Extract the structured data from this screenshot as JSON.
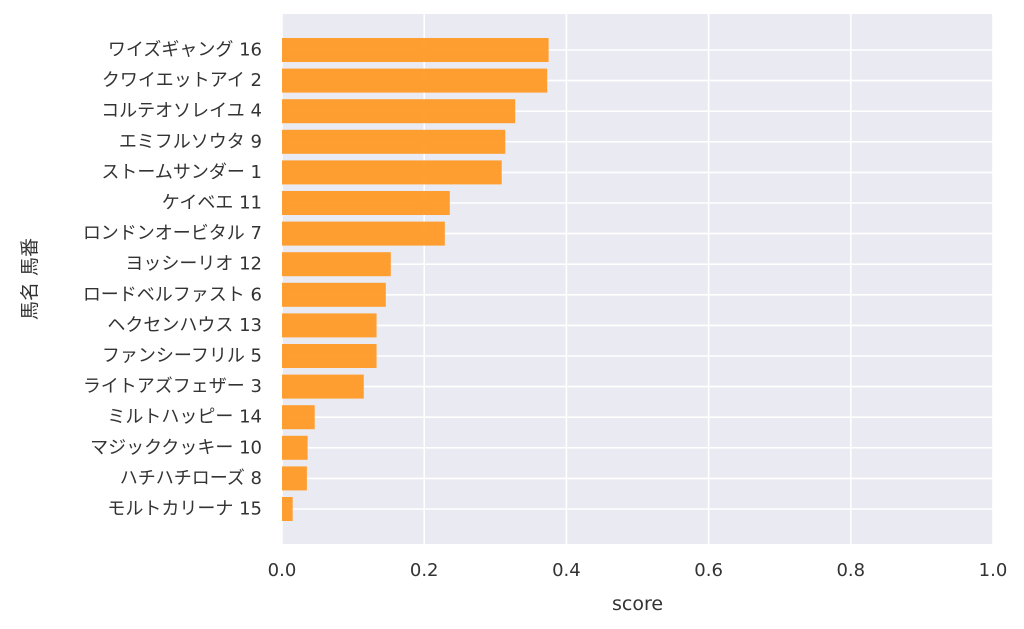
{
  "chart_data": {
    "type": "bar",
    "orientation": "horizontal",
    "title": "",
    "xlabel": "score",
    "ylabel": "馬名 馬番",
    "xlim": [
      0,
      1.0
    ],
    "xticks": [
      "0.0",
      "0.2",
      "0.4",
      "0.6",
      "0.8",
      "1.0"
    ],
    "xtick_values": [
      0,
      0.2,
      0.4,
      0.6,
      0.8,
      1.0
    ],
    "grid": true,
    "bar_color": "#ff9a26",
    "background_color": "#eaeaf2",
    "categories": [
      "ワイズギャング 16",
      "クワイエットアイ 2",
      "コルテオソレイユ 4",
      "エミフルソウタ 9",
      "ストームサンダー 1",
      "ケイベエ 11",
      "ロンドンオービタル 7",
      "ヨッシーリオ 12",
      "ロードベルファスト 6",
      "ヘクセンハウス 13",
      "ファンシーフリル 5",
      "ライトアズフェザー 3",
      "ミルトハッピー 14",
      "マジッククッキー 10",
      "ハチハチローズ 8",
      "モルトカリーナ 15"
    ],
    "values": [
      0.375,
      0.373,
      0.328,
      0.314,
      0.309,
      0.236,
      0.229,
      0.153,
      0.146,
      0.133,
      0.133,
      0.115,
      0.046,
      0.036,
      0.035,
      0.015
    ]
  }
}
